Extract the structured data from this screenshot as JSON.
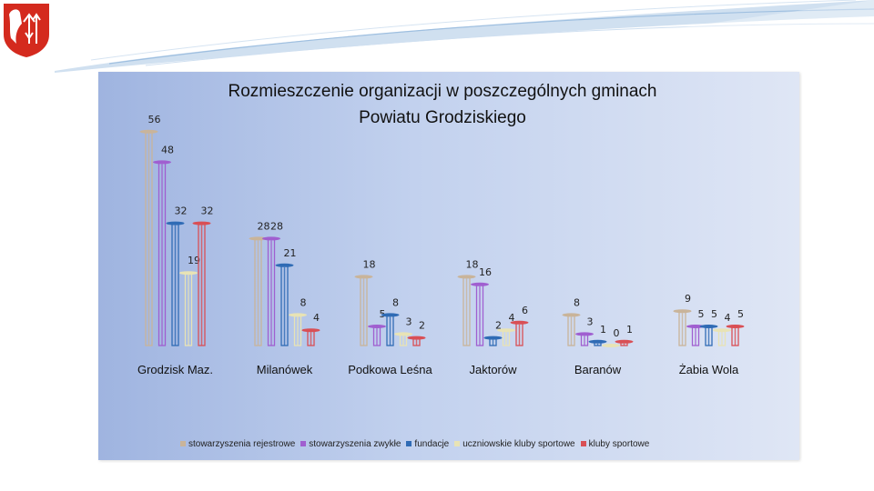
{
  "chart_data": {
    "type": "bar",
    "title_lines": [
      "Rozmieszczenie organizacji w poszczególnych gminach",
      "Powiatu Grodziskiego"
    ],
    "categories": [
      "Grodzisk Maz.",
      "Milanówek",
      "Podkowa Leśna",
      "Jaktorów",
      "Baranów",
      "Żabia Wola"
    ],
    "series": [
      {
        "name": "stowarzyszenia rejestrowe",
        "color": "#c9b49a",
        "values": [
          56,
          28,
          18,
          18,
          8,
          9
        ]
      },
      {
        "name": "stowarzyszenia zwykłe",
        "color": "#a05fd0",
        "values": [
          48,
          28,
          5,
          16,
          3,
          5
        ]
      },
      {
        "name": "fundacje",
        "color": "#2f6bb5",
        "values": [
          32,
          21,
          8,
          2,
          1,
          5
        ]
      },
      {
        "name": "uczniowskie kluby sportowe",
        "color": "#e8e3b5",
        "values": [
          19,
          8,
          3,
          4,
          0,
          4
        ]
      },
      {
        "name": "kluby sportowe",
        "color": "#d94f55",
        "values": [
          32,
          4,
          2,
          6,
          1,
          5
        ]
      }
    ],
    "legend": "bottom",
    "grid": false
  }
}
